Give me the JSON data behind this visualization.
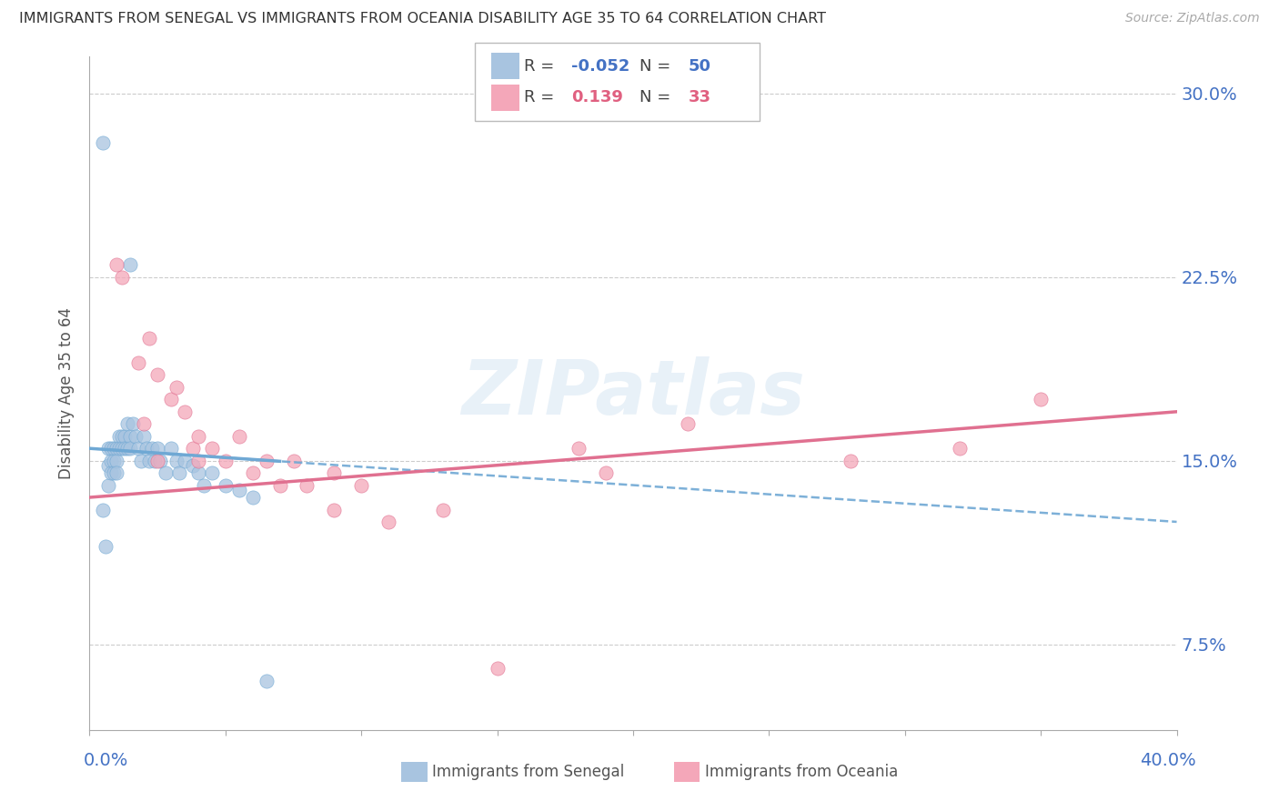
{
  "title": "IMMIGRANTS FROM SENEGAL VS IMMIGRANTS FROM OCEANIA DISABILITY AGE 35 TO 64 CORRELATION CHART",
  "source": "Source: ZipAtlas.com",
  "ylabel": "Disability Age 35 to 64",
  "xrange": [
    0.0,
    0.4
  ],
  "yrange": [
    0.04,
    0.315
  ],
  "yticks": [
    0.075,
    0.15,
    0.225,
    0.3
  ],
  "ytick_labels": [
    "7.5%",
    "15.0%",
    "22.5%",
    "30.0%"
  ],
  "r_senegal": -0.052,
  "n_senegal": 50,
  "r_oceania": 0.139,
  "n_oceania": 33,
  "color_senegal": "#a8c4e0",
  "color_oceania": "#f4a7b9",
  "color_senegal_line": "#6fa8d4",
  "color_oceania_line": "#e07090",
  "color_r_senegal": "#4472c4",
  "color_r_oceania": "#e06080",
  "watermark": "ZIPatlas",
  "senegal_x": [
    0.005,
    0.005,
    0.006,
    0.007,
    0.007,
    0.007,
    0.008,
    0.008,
    0.008,
    0.009,
    0.009,
    0.009,
    0.01,
    0.01,
    0.01,
    0.011,
    0.011,
    0.012,
    0.012,
    0.013,
    0.013,
    0.014,
    0.014,
    0.015,
    0.015,
    0.016,
    0.017,
    0.018,
    0.019,
    0.02,
    0.021,
    0.022,
    0.023,
    0.024,
    0.025,
    0.026,
    0.028,
    0.03,
    0.032,
    0.033,
    0.035,
    0.038,
    0.04,
    0.042,
    0.045,
    0.05,
    0.055,
    0.06,
    0.065,
    0.015
  ],
  "senegal_y": [
    0.28,
    0.13,
    0.115,
    0.155,
    0.148,
    0.14,
    0.155,
    0.15,
    0.145,
    0.155,
    0.15,
    0.145,
    0.155,
    0.15,
    0.145,
    0.16,
    0.155,
    0.16,
    0.155,
    0.16,
    0.155,
    0.165,
    0.155,
    0.16,
    0.155,
    0.165,
    0.16,
    0.155,
    0.15,
    0.16,
    0.155,
    0.15,
    0.155,
    0.15,
    0.155,
    0.15,
    0.145,
    0.155,
    0.15,
    0.145,
    0.15,
    0.148,
    0.145,
    0.14,
    0.145,
    0.14,
    0.138,
    0.135,
    0.06,
    0.23
  ],
  "oceania_x": [
    0.01,
    0.012,
    0.018,
    0.02,
    0.022,
    0.025,
    0.025,
    0.03,
    0.032,
    0.035,
    0.038,
    0.04,
    0.04,
    0.045,
    0.05,
    0.055,
    0.06,
    0.065,
    0.07,
    0.075,
    0.08,
    0.09,
    0.09,
    0.1,
    0.11,
    0.13,
    0.15,
    0.18,
    0.19,
    0.22,
    0.28,
    0.32,
    0.35
  ],
  "oceania_y": [
    0.23,
    0.225,
    0.19,
    0.165,
    0.2,
    0.185,
    0.15,
    0.175,
    0.18,
    0.17,
    0.155,
    0.16,
    0.15,
    0.155,
    0.15,
    0.16,
    0.145,
    0.15,
    0.14,
    0.15,
    0.14,
    0.13,
    0.145,
    0.14,
    0.125,
    0.13,
    0.065,
    0.155,
    0.145,
    0.165,
    0.15,
    0.155,
    0.175
  ],
  "sen_line_x": [
    0.0,
    0.4
  ],
  "sen_line_y": [
    0.155,
    0.125
  ],
  "oce_line_x": [
    0.0,
    0.4
  ],
  "oce_line_y": [
    0.135,
    0.17
  ]
}
